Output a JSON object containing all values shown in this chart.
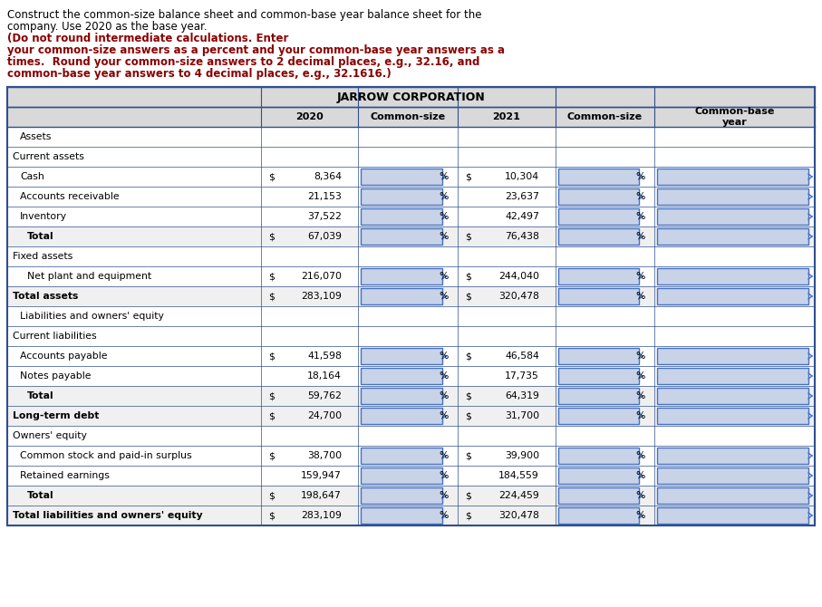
{
  "title_text": "Construct the common-size balance sheet and common-base year balance sheet for the\ncompany. Use 2020 as the base year.",
  "bold_text": "(Do not round intermediate calculations. Enter\nyour common-size answers as a percent and your common-base year answers as a\ntimes. Round your common-size answers to 2 decimal places, e.g., 32.16, and\ncommon-base year answers to 4 decimal places, e.g., 32.1616.)",
  "table_title": "JARROW CORPORATION",
  "col_headers": [
    "",
    "2020",
    "Common-size",
    "2021",
    "Common-size",
    "Common-base\nyear"
  ],
  "header_bg": "#d9d9d9",
  "table_border": "#1f3864",
  "input_box_color": "#c8d3e8",
  "input_box_border": "#4472c4",
  "rows": [
    {
      "label": "Assets",
      "indent": 1,
      "type": "section_header",
      "has_dollar_2020": false,
      "val_2020": "",
      "has_dollar_2021": false,
      "val_2021": "",
      "has_pct_2020": false,
      "has_pct_2021": false,
      "has_cby": false
    },
    {
      "label": "Current assets",
      "indent": 0,
      "type": "section",
      "has_dollar_2020": false,
      "val_2020": "",
      "has_dollar_2021": false,
      "val_2021": "",
      "has_pct_2020": false,
      "has_pct_2021": false,
      "has_cby": false
    },
    {
      "label": "Cash",
      "indent": 1,
      "type": "data",
      "has_dollar_2020": true,
      "val_2020": "8,364",
      "has_dollar_2021": true,
      "val_2021": "10,304",
      "has_pct_2020": true,
      "has_pct_2021": true,
      "has_cby": true
    },
    {
      "label": "Accounts receivable",
      "indent": 1,
      "type": "data",
      "has_dollar_2020": false,
      "val_2020": "21,153",
      "has_dollar_2021": false,
      "val_2021": "23,637",
      "has_pct_2020": true,
      "has_pct_2021": true,
      "has_cby": true
    },
    {
      "label": "Inventory",
      "indent": 1,
      "type": "data",
      "has_dollar_2020": false,
      "val_2020": "37,522",
      "has_dollar_2021": false,
      "val_2021": "42,497",
      "has_pct_2020": true,
      "has_pct_2021": true,
      "has_cby": true
    },
    {
      "label": "Total",
      "indent": 2,
      "type": "subtotal",
      "has_dollar_2020": true,
      "val_2020": "67,039",
      "has_dollar_2021": true,
      "val_2021": "76,438",
      "has_pct_2020": true,
      "has_pct_2021": true,
      "has_cby": true
    },
    {
      "label": "Fixed assets",
      "indent": 0,
      "type": "section",
      "has_dollar_2020": false,
      "val_2020": "",
      "has_dollar_2021": false,
      "val_2021": "",
      "has_pct_2020": false,
      "has_pct_2021": false,
      "has_cby": false
    },
    {
      "label": "Net plant and equipment",
      "indent": 2,
      "type": "data",
      "has_dollar_2020": true,
      "val_2020": "216,070",
      "has_dollar_2021": true,
      "val_2021": "244,040",
      "has_pct_2020": true,
      "has_pct_2021": true,
      "has_cby": true
    },
    {
      "label": "Total assets",
      "indent": 0,
      "type": "total",
      "has_dollar_2020": true,
      "val_2020": "283,109",
      "has_dollar_2021": true,
      "val_2021": "320,478",
      "has_pct_2020": true,
      "has_pct_2021": true,
      "has_cby": true
    },
    {
      "label": "Liabilities and owners' equity",
      "indent": 1,
      "type": "section_header",
      "has_dollar_2020": false,
      "val_2020": "",
      "has_dollar_2021": false,
      "val_2021": "",
      "has_pct_2020": false,
      "has_pct_2021": false,
      "has_cby": false
    },
    {
      "label": "Current liabilities",
      "indent": 0,
      "type": "section",
      "has_dollar_2020": false,
      "val_2020": "",
      "has_dollar_2021": false,
      "val_2021": "",
      "has_pct_2020": false,
      "has_pct_2021": false,
      "has_cby": false
    },
    {
      "label": "Accounts payable",
      "indent": 1,
      "type": "data",
      "has_dollar_2020": true,
      "val_2020": "41,598",
      "has_dollar_2021": true,
      "val_2021": "46,584",
      "has_pct_2020": true,
      "has_pct_2021": true,
      "has_cby": true
    },
    {
      "label": "Notes payable",
      "indent": 1,
      "type": "data",
      "has_dollar_2020": false,
      "val_2020": "18,164",
      "has_dollar_2021": false,
      "val_2021": "17,735",
      "has_pct_2020": true,
      "has_pct_2021": true,
      "has_cby": true
    },
    {
      "label": "Total",
      "indent": 2,
      "type": "subtotal",
      "has_dollar_2020": true,
      "val_2020": "59,762",
      "has_dollar_2021": true,
      "val_2021": "64,319",
      "has_pct_2020": true,
      "has_pct_2021": true,
      "has_cby": true
    },
    {
      "label": "Long-term debt",
      "indent": 0,
      "type": "total",
      "has_dollar_2020": true,
      "val_2020": "24,700",
      "has_dollar_2021": true,
      "val_2021": "31,700",
      "has_pct_2020": true,
      "has_pct_2021": true,
      "has_cby": true
    },
    {
      "label": "Owners' equity",
      "indent": 0,
      "type": "section",
      "has_dollar_2020": false,
      "val_2020": "",
      "has_dollar_2021": false,
      "val_2021": "",
      "has_pct_2020": false,
      "has_pct_2021": false,
      "has_cby": false
    },
    {
      "label": "Common stock and paid-in surplus",
      "indent": 1,
      "type": "data",
      "has_dollar_2020": true,
      "val_2020": "38,700",
      "has_dollar_2021": true,
      "val_2021": "39,900",
      "has_pct_2020": true,
      "has_pct_2021": true,
      "has_cby": true
    },
    {
      "label": "Retained earnings",
      "indent": 1,
      "type": "data",
      "has_dollar_2020": false,
      "val_2020": "159,947",
      "has_dollar_2021": false,
      "val_2021": "184,559",
      "has_pct_2020": true,
      "has_pct_2021": true,
      "has_cby": true
    },
    {
      "label": "Total",
      "indent": 2,
      "type": "subtotal",
      "has_dollar_2020": true,
      "val_2020": "198,647",
      "has_dollar_2021": true,
      "val_2021": "224,459",
      "has_pct_2020": true,
      "has_pct_2021": true,
      "has_cby": true
    },
    {
      "label": "Total liabilities and owners' equity",
      "indent": 0,
      "type": "total",
      "has_dollar_2020": true,
      "val_2020": "283,109",
      "has_dollar_2021": true,
      "val_2021": "320,478",
      "has_pct_2020": true,
      "has_pct_2021": true,
      "has_cby": true
    }
  ],
  "text_color": "#000000",
  "bold_color": "#8b0000",
  "fig_bg": "#ffffff"
}
